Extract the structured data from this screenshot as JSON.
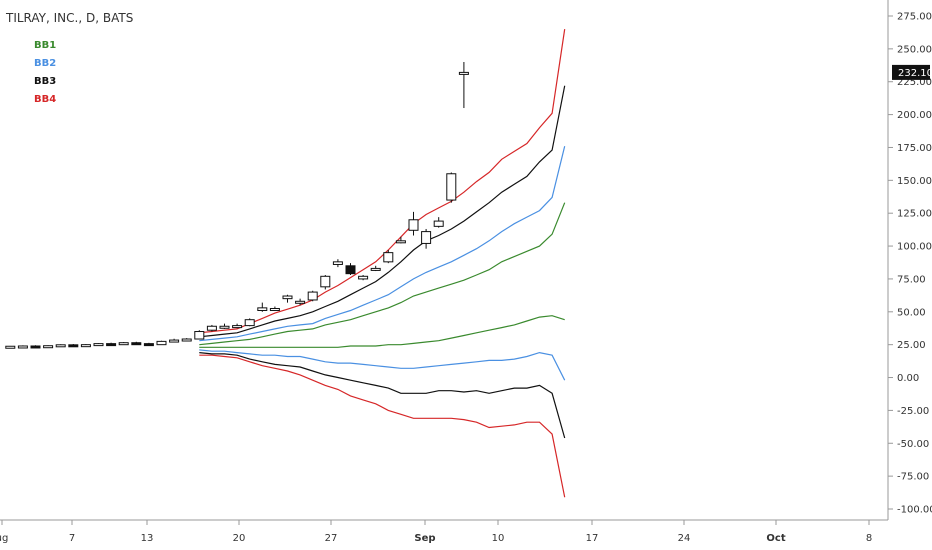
{
  "header": {
    "title": "TILRAY, INC., D, BATS"
  },
  "legend": [
    {
      "label": "BB1",
      "color": "#3a8a2e"
    },
    {
      "label": "BB2",
      "color": "#4a90e2"
    },
    {
      "label": "BB3",
      "color": "#111111"
    },
    {
      "label": "BB4",
      "color": "#d62728"
    }
  ],
  "price_label": "232.10",
  "chart_data": {
    "type": "line",
    "title": "TILRAY, INC., D, BATS",
    "ylim": [
      -100,
      275
    ],
    "yticks": [
      "275.00",
      "250.00",
      "225.00",
      "200.00",
      "175.00",
      "150.00",
      "125.00",
      "100.00",
      "75.00",
      "50.00",
      "25.00",
      "0.00",
      "-25.00",
      "-50.00",
      "-75.00",
      "-100.00"
    ],
    "xticks": [
      "ug",
      "7",
      "13",
      "20",
      "27",
      "Sep",
      "10",
      "17",
      "24",
      "Oct",
      "8"
    ],
    "last_price": 232.1,
    "candles": [
      {
        "o": 23.5,
        "h": 24,
        "l": 23,
        "c": 23.8
      },
      {
        "o": 23.8,
        "h": 24.5,
        "l": 23.3,
        "c": 24
      },
      {
        "o": 24,
        "h": 24.6,
        "l": 23.4,
        "c": 23.6
      },
      {
        "o": 23.6,
        "h": 24.5,
        "l": 23.2,
        "c": 24.2
      },
      {
        "o": 24.2,
        "h": 25.3,
        "l": 23.8,
        "c": 24.9
      },
      {
        "o": 24.9,
        "h": 25.5,
        "l": 24.2,
        "c": 24.5
      },
      {
        "o": 24.5,
        "h": 25.4,
        "l": 24,
        "c": 25
      },
      {
        "o": 25,
        "h": 26.1,
        "l": 24.6,
        "c": 25.8
      },
      {
        "o": 25.8,
        "h": 26.5,
        "l": 25.2,
        "c": 25.5
      },
      {
        "o": 25.5,
        "h": 27,
        "l": 25,
        "c": 26.5
      },
      {
        "o": 26.5,
        "h": 27.2,
        "l": 25.4,
        "c": 25.8
      },
      {
        "o": 25.8,
        "h": 26.4,
        "l": 24.8,
        "c": 25
      },
      {
        "o": 25,
        "h": 28,
        "l": 24.8,
        "c": 27.5
      },
      {
        "o": 27.5,
        "h": 29.5,
        "l": 27,
        "c": 28.5
      },
      {
        "o": 28.5,
        "h": 30,
        "l": 28,
        "c": 29.3
      },
      {
        "o": 29.3,
        "h": 36,
        "l": 29,
        "c": 35
      },
      {
        "o": 36,
        "h": 40,
        "l": 35,
        "c": 39
      },
      {
        "o": 38,
        "h": 41,
        "l": 37,
        "c": 39
      },
      {
        "o": 38.5,
        "h": 41,
        "l": 37.5,
        "c": 39.5
      },
      {
        "o": 39.5,
        "h": 45,
        "l": 39,
        "c": 44
      },
      {
        "o": 51,
        "h": 57,
        "l": 50,
        "c": 53
      },
      {
        "o": 52,
        "h": 54,
        "l": 51,
        "c": 52.5
      },
      {
        "o": 60,
        "h": 63,
        "l": 57,
        "c": 62
      },
      {
        "o": 57,
        "h": 60,
        "l": 55,
        "c": 58
      },
      {
        "o": 59,
        "h": 66,
        "l": 58,
        "c": 65
      },
      {
        "o": 69,
        "h": 78,
        "l": 67,
        "c": 77
      },
      {
        "o": 86,
        "h": 90,
        "l": 84,
        "c": 88
      },
      {
        "o": 85,
        "h": 87,
        "l": 78,
        "c": 79
      },
      {
        "o": 75,
        "h": 78,
        "l": 74,
        "c": 77
      },
      {
        "o": 82,
        "h": 85,
        "l": 81,
        "c": 83
      },
      {
        "o": 88,
        "h": 97,
        "l": 87,
        "c": 95
      },
      {
        "o": 103,
        "h": 107,
        "l": 102,
        "c": 104
      },
      {
        "o": 112,
        "h": 126,
        "l": 108,
        "c": 120
      },
      {
        "o": 102,
        "h": 113,
        "l": 98,
        "c": 111
      },
      {
        "o": 115,
        "h": 122,
        "l": 114,
        "c": 119
      },
      {
        "o": 135,
        "h": 156,
        "l": 133,
        "c": 155
      },
      {
        "o": 232,
        "h": 240,
        "l": 205,
        "c": 232.1
      }
    ],
    "series": [
      {
        "name": "BB1",
        "color": "#3a8a2e",
        "start": 15,
        "values": [
          25,
          26,
          27,
          28,
          29,
          31,
          33,
          35,
          36,
          37,
          40,
          42,
          44,
          47,
          50,
          53,
          57,
          62,
          65,
          68,
          71,
          74,
          78,
          82,
          88,
          92,
          96,
          100,
          109,
          133
        ]
      },
      {
        "name": "BB2",
        "color": "#4a90e2",
        "start": 15,
        "values": [
          28,
          29,
          30,
          31,
          33,
          35,
          37,
          39,
          40,
          41,
          45,
          48,
          51,
          55,
          59,
          63,
          69,
          75,
          80,
          84,
          88,
          93,
          98,
          104,
          111,
          117,
          122,
          127,
          137,
          176
        ]
      },
      {
        "name": "BB3",
        "color": "#111111",
        "start": 15,
        "values": [
          31,
          32,
          33,
          34,
          37,
          40,
          43,
          45,
          47,
          50,
          54,
          58,
          63,
          68,
          73,
          80,
          88,
          97,
          104,
          108,
          113,
          119,
          126,
          133,
          141,
          147,
          153,
          164,
          173,
          222
        ]
      },
      {
        "name": "BB4",
        "color": "#d62728",
        "start": 15,
        "values": [
          34,
          35,
          36,
          37,
          41,
          45,
          49,
          52,
          55,
          59,
          65,
          70,
          76,
          82,
          88,
          97,
          107,
          117,
          124,
          129,
          134,
          141,
          149,
          156,
          166,
          172,
          178,
          190,
          201,
          265
        ]
      },
      {
        "name": "BB1",
        "color": "#3a8a2e",
        "start": 15,
        "values": [
          23,
          23,
          23,
          23,
          23,
          23,
          23,
          23,
          23,
          23,
          23,
          23,
          24,
          24,
          24,
          25,
          25,
          26,
          27,
          28,
          30,
          32,
          34,
          36,
          38,
          40,
          43,
          46,
          47,
          44
        ]
      },
      {
        "name": "BB2",
        "color": "#4a90e2",
        "start": 15,
        "values": [
          21,
          20,
          20,
          19,
          18,
          17,
          17,
          16,
          16,
          14,
          12,
          11,
          11,
          10,
          9,
          8,
          7,
          7,
          8,
          9,
          10,
          11,
          12,
          13,
          13,
          14,
          16,
          19,
          17,
          -2
        ]
      },
      {
        "name": "BB3",
        "color": "#111111",
        "start": 15,
        "values": [
          19,
          18,
          18,
          17,
          14,
          12,
          10,
          9,
          8,
          5,
          2,
          0,
          -2,
          -4,
          -6,
          -8,
          -12,
          -12,
          -12,
          -10,
          -10,
          -11,
          -10,
          -12,
          -10,
          -8,
          -8,
          -6,
          -12,
          -46
        ]
      },
      {
        "name": "BB4",
        "color": "#d62728",
        "start": 15,
        "values": [
          17,
          17,
          16,
          15,
          12,
          9,
          7,
          5,
          2,
          -2,
          -6,
          -9,
          -14,
          -17,
          -20,
          -25,
          -28,
          -31,
          -31,
          -31,
          -31,
          -32,
          -34,
          -38,
          -37,
          -36,
          -34,
          -34,
          -43,
          -91
        ]
      }
    ]
  }
}
